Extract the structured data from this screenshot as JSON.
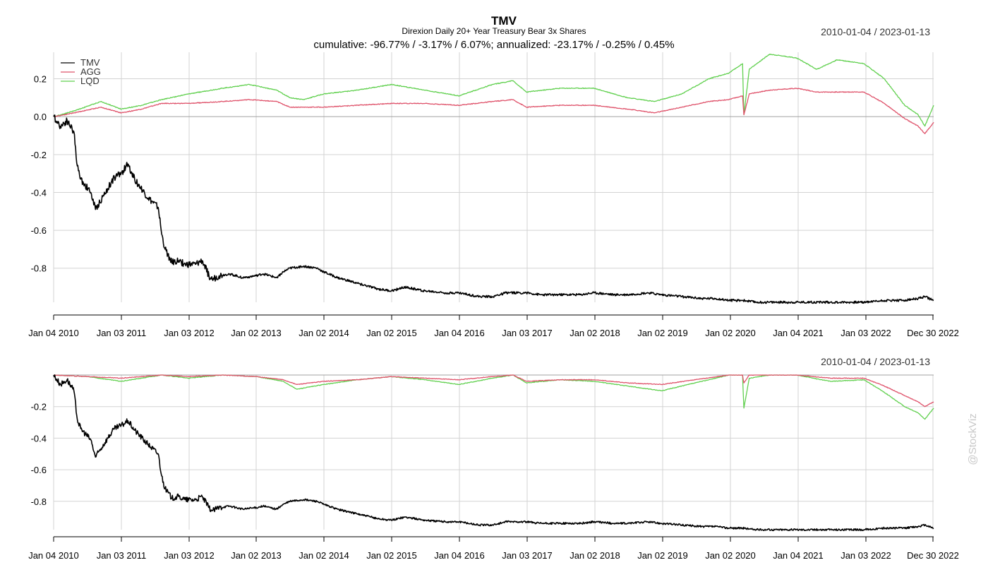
{
  "header": {
    "title": "TMV",
    "subtitle": "Direxion Daily 20+ Year Treasury Bear 3x Shares",
    "summary": "cumulative: -96.77% / -3.17% / 6.07%; annualized: -23.17% / -0.25% / 0.45%",
    "range_top": "2010-01-04 / 2023-01-13",
    "range_bottom": "2010-01-04 / 2023-01-13"
  },
  "watermark": "@StockViz",
  "colors": {
    "TMV": "#000000",
    "AGG": "#df536b",
    "LQD": "#61d04f",
    "grid": "#d3d3d3",
    "zero": "#a0a0a0"
  },
  "chart_data": [
    {
      "type": "line",
      "panel": "cumulative returns",
      "legend": [
        "TMV",
        "AGG",
        "LQD"
      ],
      "legend_position": "top-left",
      "grid": true,
      "x_ticks": [
        "Jan 04 2010",
        "Jan 03 2011",
        "Jan 03 2012",
        "Jan 02 2013",
        "Jan 02 2014",
        "Jan 02 2015",
        "Jan 04 2016",
        "Jan 03 2017",
        "Jan 02 2018",
        "Jan 02 2019",
        "Jan 02 2020",
        "Jan 04 2021",
        "Jan 03 2022",
        "Dec 30 2022"
      ],
      "y_ticks": [
        "0.2",
        "0.0",
        "-0.2",
        "-0.4",
        "-0.6",
        "-0.8"
      ],
      "y_tick_values": [
        0.2,
        0.0,
        -0.2,
        -0.4,
        -0.6,
        -0.8
      ],
      "ylim": [
        -0.98,
        0.34
      ],
      "xlim": [
        2010.0,
        2023.03
      ],
      "series": [
        {
          "name": "TMV",
          "x": [
            2010.0,
            2010.1,
            2010.2,
            2010.3,
            2010.35,
            2010.4,
            2010.55,
            2010.62,
            2010.8,
            2010.9,
            2011.0,
            2011.1,
            2011.2,
            2011.4,
            2011.55,
            2011.6,
            2011.65,
            2011.75,
            2011.85,
            2011.95,
            2012.1,
            2012.2,
            2012.3,
            2012.35,
            2012.45,
            2012.6,
            2012.8,
            2013.0,
            2013.1,
            2013.3,
            2013.4,
            2013.5,
            2013.7,
            2013.9,
            2014.0,
            2014.2,
            2014.5,
            2014.8,
            2015.0,
            2015.2,
            2015.5,
            2015.8,
            2016.0,
            2016.3,
            2016.5,
            2016.7,
            2016.9,
            2017.0,
            2017.2,
            2017.5,
            2017.8,
            2018.0,
            2018.3,
            2018.5,
            2018.8,
            2019.0,
            2019.3,
            2019.6,
            2019.8,
            2020.0,
            2020.2,
            2020.4,
            2020.6,
            2021.0,
            2021.2,
            2021.5,
            2021.8,
            2022.0,
            2022.3,
            2022.6,
            2022.8,
            2022.9,
            2023.03
          ],
          "y": [
            0.0,
            -0.05,
            -0.02,
            -0.08,
            -0.26,
            -0.33,
            -0.4,
            -0.49,
            -0.38,
            -0.32,
            -0.3,
            -0.25,
            -0.33,
            -0.43,
            -0.48,
            -0.62,
            -0.7,
            -0.77,
            -0.76,
            -0.78,
            -0.78,
            -0.76,
            -0.84,
            -0.86,
            -0.84,
            -0.83,
            -0.85,
            -0.84,
            -0.83,
            -0.85,
            -0.82,
            -0.8,
            -0.79,
            -0.8,
            -0.82,
            -0.85,
            -0.88,
            -0.91,
            -0.92,
            -0.9,
            -0.92,
            -0.93,
            -0.93,
            -0.95,
            -0.95,
            -0.93,
            -0.93,
            -0.93,
            -0.94,
            -0.94,
            -0.94,
            -0.93,
            -0.94,
            -0.94,
            -0.93,
            -0.94,
            -0.95,
            -0.96,
            -0.96,
            -0.97,
            -0.97,
            -0.98,
            -0.98,
            -0.98,
            -0.98,
            -0.98,
            -0.98,
            -0.98,
            -0.97,
            -0.97,
            -0.96,
            -0.95,
            -0.97
          ]
        },
        {
          "name": "AGG",
          "x": [
            2010.0,
            2010.3,
            2010.7,
            2011.0,
            2011.3,
            2011.6,
            2012.0,
            2012.5,
            2012.9,
            2013.3,
            2013.5,
            2013.7,
            2014.0,
            2014.5,
            2015.0,
            2015.5,
            2016.0,
            2016.5,
            2016.8,
            2017.0,
            2017.5,
            2018.0,
            2018.5,
            2018.9,
            2019.3,
            2019.7,
            2020.0,
            2020.2,
            2020.22,
            2020.3,
            2020.6,
            2021.0,
            2021.3,
            2021.6,
            2022.0,
            2022.3,
            2022.6,
            2022.8,
            2022.9,
            2023.03
          ],
          "y": [
            0.0,
            0.02,
            0.05,
            0.02,
            0.04,
            0.07,
            0.07,
            0.08,
            0.09,
            0.08,
            0.05,
            0.05,
            0.05,
            0.06,
            0.07,
            0.07,
            0.06,
            0.08,
            0.09,
            0.05,
            0.06,
            0.06,
            0.04,
            0.02,
            0.05,
            0.08,
            0.09,
            0.11,
            0.01,
            0.12,
            0.14,
            0.15,
            0.13,
            0.13,
            0.13,
            0.07,
            -0.01,
            -0.05,
            -0.09,
            -0.03
          ]
        },
        {
          "name": "LQD",
          "x": [
            2010.0,
            2010.3,
            2010.7,
            2011.0,
            2011.3,
            2011.6,
            2012.0,
            2012.5,
            2012.9,
            2013.3,
            2013.5,
            2013.7,
            2014.0,
            2014.5,
            2015.0,
            2015.5,
            2016.0,
            2016.5,
            2016.8,
            2017.0,
            2017.5,
            2018.0,
            2018.5,
            2018.9,
            2019.3,
            2019.7,
            2020.0,
            2020.2,
            2020.22,
            2020.3,
            2020.6,
            2021.0,
            2021.3,
            2021.6,
            2022.0,
            2022.3,
            2022.6,
            2022.8,
            2022.9,
            2023.03
          ],
          "y": [
            0.0,
            0.03,
            0.08,
            0.04,
            0.06,
            0.09,
            0.12,
            0.15,
            0.17,
            0.14,
            0.1,
            0.09,
            0.12,
            0.14,
            0.17,
            0.14,
            0.11,
            0.17,
            0.19,
            0.13,
            0.15,
            0.15,
            0.1,
            0.08,
            0.12,
            0.2,
            0.23,
            0.28,
            0.01,
            0.25,
            0.33,
            0.31,
            0.25,
            0.3,
            0.28,
            0.2,
            0.06,
            0.01,
            -0.05,
            0.06
          ]
        }
      ]
    },
    {
      "type": "line",
      "panel": "drawdown",
      "grid": true,
      "x_ticks": [
        "Jan 04 2010",
        "Jan 03 2011",
        "Jan 03 2012",
        "Jan 02 2013",
        "Jan 02 2014",
        "Jan 02 2015",
        "Jan 04 2016",
        "Jan 03 2017",
        "Jan 02 2018",
        "Jan 02 2019",
        "Jan 02 2020",
        "Jan 04 2021",
        "Jan 03 2022",
        "Dec 30 2022"
      ],
      "y_ticks": [
        "-0.2",
        "-0.4",
        "-0.6",
        "-0.8"
      ],
      "y_tick_values": [
        -0.2,
        -0.4,
        -0.6,
        -0.8
      ],
      "ylim": [
        -0.98,
        0.0
      ],
      "xlim": [
        2010.0,
        2023.03
      ],
      "series": [
        {
          "name": "TMV",
          "x": [
            2010.0,
            2010.1,
            2010.2,
            2010.3,
            2010.35,
            2010.4,
            2010.55,
            2010.62,
            2010.8,
            2010.9,
            2011.0,
            2011.1,
            2011.2,
            2011.4,
            2011.55,
            2011.6,
            2011.65,
            2011.75,
            2011.85,
            2011.95,
            2012.1,
            2012.2,
            2012.3,
            2012.35,
            2012.45,
            2012.6,
            2012.8,
            2013.0,
            2013.1,
            2013.3,
            2013.4,
            2013.5,
            2013.7,
            2013.9,
            2014.0,
            2014.2,
            2014.5,
            2014.8,
            2015.0,
            2015.2,
            2015.5,
            2015.8,
            2016.0,
            2016.3,
            2016.5,
            2016.7,
            2016.9,
            2017.0,
            2017.2,
            2017.5,
            2017.8,
            2018.0,
            2018.3,
            2018.5,
            2018.8,
            2019.0,
            2019.3,
            2019.6,
            2019.8,
            2020.0,
            2020.2,
            2020.4,
            2020.6,
            2021.0,
            2021.2,
            2021.5,
            2021.8,
            2022.0,
            2022.3,
            2022.6,
            2022.8,
            2022.9,
            2023.03
          ],
          "y": [
            0.0,
            -0.06,
            -0.03,
            -0.1,
            -0.28,
            -0.34,
            -0.41,
            -0.52,
            -0.4,
            -0.34,
            -0.32,
            -0.29,
            -0.35,
            -0.44,
            -0.5,
            -0.64,
            -0.72,
            -0.78,
            -0.77,
            -0.79,
            -0.79,
            -0.77,
            -0.84,
            -0.86,
            -0.84,
            -0.83,
            -0.85,
            -0.84,
            -0.83,
            -0.85,
            -0.82,
            -0.8,
            -0.79,
            -0.8,
            -0.82,
            -0.85,
            -0.88,
            -0.91,
            -0.92,
            -0.9,
            -0.92,
            -0.93,
            -0.93,
            -0.95,
            -0.95,
            -0.93,
            -0.93,
            -0.93,
            -0.94,
            -0.94,
            -0.94,
            -0.93,
            -0.94,
            -0.94,
            -0.93,
            -0.94,
            -0.95,
            -0.96,
            -0.96,
            -0.97,
            -0.97,
            -0.98,
            -0.98,
            -0.98,
            -0.98,
            -0.98,
            -0.98,
            -0.98,
            -0.97,
            -0.97,
            -0.96,
            -0.95,
            -0.97
          ]
        },
        {
          "name": "AGG",
          "x": [
            2010.0,
            2010.5,
            2011.0,
            2011.3,
            2011.6,
            2012.0,
            2012.5,
            2013.0,
            2013.4,
            2013.6,
            2014.0,
            2014.5,
            2015.0,
            2015.5,
            2016.0,
            2016.5,
            2016.8,
            2017.0,
            2017.5,
            2018.0,
            2018.5,
            2019.0,
            2019.5,
            2020.0,
            2020.2,
            2020.22,
            2020.3,
            2020.6,
            2021.0,
            2021.5,
            2022.0,
            2022.3,
            2022.6,
            2022.8,
            2022.9,
            2023.03
          ],
          "y": [
            0.0,
            -0.01,
            -0.02,
            -0.01,
            0.0,
            -0.01,
            0.0,
            -0.01,
            -0.03,
            -0.06,
            -0.04,
            -0.03,
            -0.01,
            -0.02,
            -0.03,
            -0.01,
            0.0,
            -0.04,
            -0.03,
            -0.03,
            -0.05,
            -0.06,
            -0.03,
            0.0,
            0.0,
            -0.05,
            0.0,
            0.0,
            0.0,
            -0.02,
            -0.02,
            -0.07,
            -0.13,
            -0.17,
            -0.2,
            -0.17
          ]
        },
        {
          "name": "LQD",
          "x": [
            2010.0,
            2010.5,
            2011.0,
            2011.3,
            2011.6,
            2012.0,
            2012.5,
            2013.0,
            2013.4,
            2013.6,
            2014.0,
            2014.5,
            2015.0,
            2015.5,
            2016.0,
            2016.5,
            2016.8,
            2017.0,
            2017.5,
            2018.0,
            2018.5,
            2019.0,
            2019.5,
            2020.0,
            2020.2,
            2020.22,
            2020.3,
            2020.6,
            2021.0,
            2021.5,
            2022.0,
            2022.3,
            2022.6,
            2022.8,
            2022.9,
            2023.03
          ],
          "y": [
            0.0,
            -0.01,
            -0.04,
            -0.02,
            0.0,
            -0.02,
            0.0,
            -0.01,
            -0.04,
            -0.09,
            -0.06,
            -0.03,
            -0.01,
            -0.03,
            -0.06,
            -0.02,
            0.0,
            -0.05,
            -0.03,
            -0.04,
            -0.07,
            -0.1,
            -0.05,
            0.0,
            0.0,
            -0.21,
            -0.02,
            0.0,
            0.0,
            -0.04,
            -0.03,
            -0.11,
            -0.2,
            -0.24,
            -0.28,
            -0.21
          ]
        }
      ]
    }
  ]
}
